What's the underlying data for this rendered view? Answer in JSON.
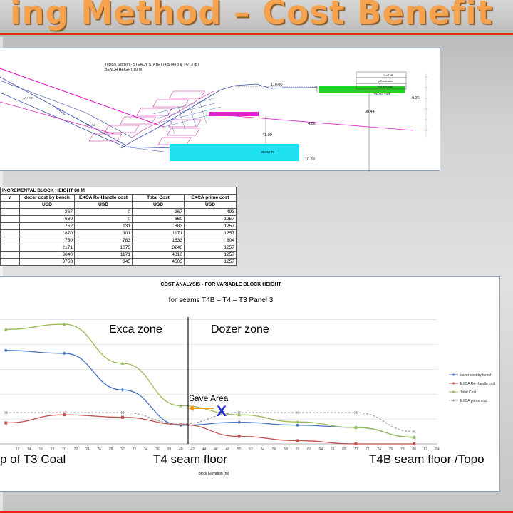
{
  "slide": {
    "title": "ing Method – Cost Benefit"
  },
  "section_diagram": {
    "heading_line1": "Typical Section - STEADY STATE  (T4B/T4 IB & T4/T3 IB)",
    "heading_line2": "BENCH HEIGHT 80 M",
    "dim_top": "110.00",
    "dim_mid_right": "38.44",
    "dim_right_top": "9.36",
    "dim_mid": "4.06",
    "dim_center": "41.09",
    "dim_bottom": "10.89",
    "label_seam_t4b": "SEAM T4B",
    "label_seam_t3": "SEAM T3",
    "label_a1a2": "A1+A2",
    "label_a2a3": "A2+A3",
    "label_cut_t4b": "Cut T4B",
    "label_ip_excavation": "Ip Excavation",
    "label_cut_ib_dump": "Cut IB Dump"
  },
  "cost_table": {
    "title": "INCREMENTAL BLOCK HEIGHT 80 M",
    "headers": [
      "v.",
      "dozer cost by bench",
      "EXCA Re-Handle cost",
      "Total Cost",
      "EXCA prime cost"
    ],
    "units": [
      "",
      "USD",
      "USD",
      "USD",
      "USD"
    ],
    "rows": [
      [
        "",
        "267",
        "0",
        "267",
        "493"
      ],
      [
        "",
        "660",
        "0",
        "660",
        "1257"
      ],
      [
        "",
        "752",
        "131",
        "883",
        "1257"
      ],
      [
        "",
        "870",
        "301",
        "1171",
        "1257"
      ],
      [
        "",
        "750",
        "783",
        "1533",
        "804"
      ],
      [
        "",
        "2171",
        "1070",
        "3240",
        "1257"
      ],
      [
        "",
        "3640",
        "1171",
        "4810",
        "1257"
      ],
      [
        "",
        "3758",
        "845",
        "4603",
        "1257"
      ]
    ]
  },
  "chart_data": {
    "type": "line",
    "title": "COST ANALYSIS - FOR VARIABLE BLOCK HEIGHT",
    "subtitle": "for seams T4B – T4 – T3 Panel 3",
    "xlabel": "Block Elevation (m)",
    "ylabel": "",
    "xlim": [
      10,
      84
    ],
    "ylim": [
      0,
      5500
    ],
    "x_ticks": [
      12,
      14,
      16,
      18,
      20,
      22,
      24,
      26,
      28,
      30,
      32,
      34,
      36,
      38,
      40,
      42,
      44,
      46,
      48,
      50,
      52,
      54,
      56,
      58,
      60,
      62,
      64,
      66,
      68,
      70,
      72,
      74,
      76,
      78,
      80,
      82,
      84
    ],
    "grid": true,
    "legend_position": "right",
    "x": [
      10,
      20,
      30,
      40,
      50,
      60,
      70,
      80
    ],
    "series": [
      {
        "name": "dozer cost by bench",
        "color": "#4472c4",
        "marker": "diamond",
        "values": [
          3758,
          3640,
          2171,
          750,
          870,
          752,
          660,
          267
        ]
      },
      {
        "name": "EXCA Re-Handle cost",
        "color": "#c0504d",
        "marker": "square",
        "values": [
          845,
          1171,
          1070,
          783,
          301,
          131,
          0,
          0
        ]
      },
      {
        "name": "Total Cost",
        "color": "#9bbb59",
        "marker": "triangle",
        "values": [
          4603,
          4810,
          3240,
          1533,
          1171,
          883,
          660,
          267
        ]
      },
      {
        "name": "EXCA prime cost",
        "color": "#a5a5a5",
        "marker": "x",
        "dashed": true,
        "values": [
          1257,
          1257,
          1257,
          804,
          1257,
          1257,
          1257,
          493
        ]
      }
    ],
    "annotations": {
      "exca_zone": "Exca zone",
      "dozer_zone": "Dozer zone",
      "save_area": "Save Area",
      "marker_x": "X",
      "left_floor": "p of T3 Coal",
      "mid_floor": "T4 seam floor",
      "right_floor": "T4B seam floor /Topo"
    },
    "colors": {
      "zone_divider": "#000000",
      "save_arrow": "#f39c12",
      "x_marker": "#1f2bd6"
    }
  }
}
